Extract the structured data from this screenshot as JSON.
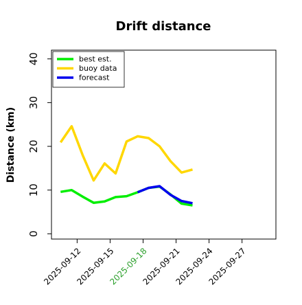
{
  "chart_data": {
    "type": "line",
    "title": "Drift distance",
    "xlabel": "",
    "ylabel": "Distance (km)",
    "ylim": [
      -1.2,
      42
    ],
    "yticks": [
      0,
      10,
      20,
      30,
      40
    ],
    "xlim": [
      "2025-09-09T16:00",
      "2025-09-30T02:00"
    ],
    "xticks": [
      {
        "date": "2025-09-12",
        "label": "2025-09-12",
        "color": "#000000"
      },
      {
        "date": "2025-09-15",
        "label": "2025-09-15",
        "color": "#000000"
      },
      {
        "date": "2025-09-18",
        "label": "2025-09-18",
        "color": "#2ca02c"
      },
      {
        "date": "2025-09-21",
        "label": "2025-09-21",
        "color": "#000000"
      },
      {
        "date": "2025-09-24",
        "label": "2025-09-24",
        "color": "#000000"
      },
      {
        "date": "2025-09-27",
        "label": "2025-09-27",
        "color": "#000000"
      }
    ],
    "grid": false,
    "legend_position": "top-left",
    "series": [
      {
        "name": "best est.",
        "color": "#00ee00",
        "points": [
          {
            "x": "2025-09-10T12:00",
            "y": 9.6
          },
          {
            "x": "2025-09-11T12:00",
            "y": 10.0
          },
          {
            "x": "2025-09-12T12:00",
            "y": 8.5
          },
          {
            "x": "2025-09-13T12:00",
            "y": 7.1
          },
          {
            "x": "2025-09-14T12:00",
            "y": 7.4
          },
          {
            "x": "2025-09-15T12:00",
            "y": 8.4
          },
          {
            "x": "2025-09-16T12:00",
            "y": 8.6
          },
          {
            "x": "2025-09-17T12:00",
            "y": 9.5
          },
          {
            "x": "2025-09-18T12:00",
            "y": 10.5
          },
          {
            "x": "2025-09-19T12:00",
            "y": 10.8
          },
          {
            "x": "2025-09-20T12:00",
            "y": 9.0
          },
          {
            "x": "2025-09-21T12:00",
            "y": 6.9
          },
          {
            "x": "2025-09-22T12:00",
            "y": 6.5
          }
        ]
      },
      {
        "name": "buoy data",
        "color": "#ffd700",
        "points": [
          {
            "x": "2025-09-10T12:00",
            "y": 20.9
          },
          {
            "x": "2025-09-11T12:00",
            "y": 24.6
          },
          {
            "x": "2025-09-12T12:00",
            "y": 18.0
          },
          {
            "x": "2025-09-13T12:00",
            "y": 12.2
          },
          {
            "x": "2025-09-14T12:00",
            "y": 16.1
          },
          {
            "x": "2025-09-15T12:00",
            "y": 13.8
          },
          {
            "x": "2025-09-16T12:00",
            "y": 21.1
          },
          {
            "x": "2025-09-17T12:00",
            "y": 22.3
          },
          {
            "x": "2025-09-18T12:00",
            "y": 21.9
          },
          {
            "x": "2025-09-19T12:00",
            "y": 20.0
          },
          {
            "x": "2025-09-20T12:00",
            "y": 16.6
          },
          {
            "x": "2025-09-21T12:00",
            "y": 14.0
          },
          {
            "x": "2025-09-22T12:00",
            "y": 14.7
          }
        ]
      },
      {
        "name": "forecast",
        "color": "#0000ee",
        "points": [
          {
            "x": "2025-09-17T12:00",
            "y": 9.5
          },
          {
            "x": "2025-09-18T12:00",
            "y": 10.5
          },
          {
            "x": "2025-09-19T12:00",
            "y": 10.9
          },
          {
            "x": "2025-09-20T12:00",
            "y": 8.9
          },
          {
            "x": "2025-09-21T12:00",
            "y": 7.5
          },
          {
            "x": "2025-09-22T12:00",
            "y": 7.0
          }
        ]
      }
    ]
  }
}
